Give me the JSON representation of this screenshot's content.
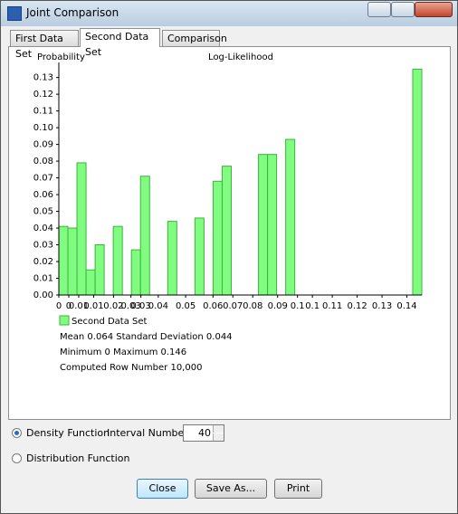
{
  "window": {
    "title": "Joint Comparison"
  },
  "tabs": [
    "First Data Set",
    "Second Data Set",
    "Comparison"
  ],
  "active_tab": 1,
  "chart_data": {
    "type": "histogram",
    "title": "Log-Likelihood",
    "y_label": "Probability",
    "bins": [
      0,
      0.00365,
      0.0073,
      0.01095,
      0.0146,
      0.01825,
      0.0219,
      0.02555,
      0.0292,
      0.03285,
      0.0365,
      0.04015,
      0.0438,
      0.04745,
      0.0511,
      0.05475,
      0.0584,
      0.06205,
      0.0657,
      0.06935,
      0.073,
      0.07665,
      0.0803,
      0.08395,
      0.0876,
      0.09125,
      0.0949,
      0.09855,
      0.1022,
      0.10585,
      0.1095,
      0.11315,
      0.1168,
      0.12045,
      0.1241,
      0.12775,
      0.1314,
      0.13505,
      0.1387,
      0.14235,
      0.146
    ],
    "series": [
      {
        "name": "Second Data Set",
        "color": "#80fc80",
        "edge_color": "#3cb43c",
        "values": [
          0.041,
          0.04,
          0.079,
          0.015,
          0.03,
          0,
          0.041,
          0,
          0.027,
          0.071,
          0,
          0,
          0.044,
          0,
          0,
          0.046,
          0,
          0.068,
          0.077,
          0,
          0,
          0,
          0.084,
          0.084,
          0,
          0.093,
          0,
          0,
          0,
          0,
          0,
          0,
          0,
          0,
          0,
          0,
          0,
          0,
          0,
          0.135
        ]
      }
    ],
    "xlim": [
      0,
      0.146
    ],
    "xticks": [
      {
        "value": 0,
        "label": "0"
      },
      {
        "value": 0.004,
        "label": "0"
      },
      {
        "value": 0.008,
        "label": "0.01"
      },
      {
        "value": 0.014,
        "label": "0.01"
      },
      {
        "value": 0.022,
        "label": "0.02"
      },
      {
        "value": 0.029,
        "label": "0.03"
      },
      {
        "value": 0.033,
        "label": "0.03"
      },
      {
        "value": 0.04,
        "label": "0.04"
      },
      {
        "value": 0.051,
        "label": "0.05"
      },
      {
        "value": 0.062,
        "label": "0.06"
      },
      {
        "value": 0.07,
        "label": "0.07"
      },
      {
        "value": 0.078,
        "label": "0.08"
      },
      {
        "value": 0.088,
        "label": "0.09"
      },
      {
        "value": 0.096,
        "label": "0.1"
      },
      {
        "value": 0.102,
        "label": "0.1"
      },
      {
        "value": 0.11,
        "label": "0.11"
      },
      {
        "value": 0.12,
        "label": "0.12"
      },
      {
        "value": 0.13,
        "label": "0.13"
      },
      {
        "value": 0.14,
        "label": "0.14"
      }
    ],
    "ylim": [
      0,
      0.139
    ],
    "yticks": [
      {
        "value": 0,
        "label": "0.00"
      },
      0.01,
      0.02,
      0.03,
      0.04,
      0.05,
      0.06,
      0.07,
      0.08,
      0.09,
      {
        "value": 0.1,
        "label": "0.10"
      },
      0.11,
      0.12,
      0.13
    ]
  },
  "stats": [
    "Mean 0.064 Standard Deviation 0.044",
    "Minimum 0 Maximum 0.146",
    "Computed Row Number 10,000"
  ],
  "controls": {
    "density": "Density Function",
    "interval_label": "Interval Number",
    "interval": 40,
    "distribution": "Distribution Function",
    "selected": "density"
  },
  "buttons": [
    "Close",
    "Save As...",
    "Print"
  ]
}
